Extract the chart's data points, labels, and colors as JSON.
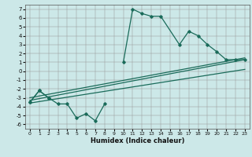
{
  "xlabel": "Humidex (Indice chaleur)",
  "background_color": "#cce8e8",
  "line_color": "#1a6b5a",
  "xlim": [
    -0.5,
    23.5
  ],
  "ylim": [
    -6.5,
    7.5
  ],
  "xticks": [
    0,
    1,
    2,
    3,
    4,
    5,
    6,
    7,
    8,
    9,
    10,
    11,
    12,
    13,
    14,
    15,
    16,
    17,
    18,
    19,
    20,
    21,
    22,
    23
  ],
  "yticks": [
    -6,
    -5,
    -4,
    -3,
    -2,
    -1,
    0,
    1,
    2,
    3,
    4,
    5,
    6,
    7
  ],
  "trend_lines": [
    {
      "x0": 0,
      "y0": -3.3,
      "x1": 23,
      "y1": 1.3
    },
    {
      "x0": 0,
      "y0": -3.0,
      "x1": 23,
      "y1": 1.5
    },
    {
      "x0": 0,
      "y0": -3.6,
      "x1": 23,
      "y1": 0.2
    }
  ],
  "low_series": {
    "x": [
      0,
      1,
      2,
      3,
      4,
      5,
      6,
      7,
      8
    ],
    "y": [
      -3.5,
      -2.2,
      -3.0,
      -3.7,
      -3.7,
      -5.3,
      -4.8,
      -5.6,
      -3.7
    ]
  },
  "high_series_seg1": {
    "x": [
      0,
      1,
      2
    ],
    "y": [
      -3.5,
      -2.2,
      -3.0
    ]
  },
  "high_series_seg2": {
    "x": [
      10,
      11,
      12,
      13,
      14,
      16,
      17,
      18,
      19,
      20,
      21,
      22,
      23
    ],
    "y": [
      1.0,
      7.0,
      6.5,
      6.2,
      6.2,
      3.0,
      4.5,
      4.0,
      3.0,
      2.2,
      1.3,
      1.3,
      1.3
    ]
  }
}
